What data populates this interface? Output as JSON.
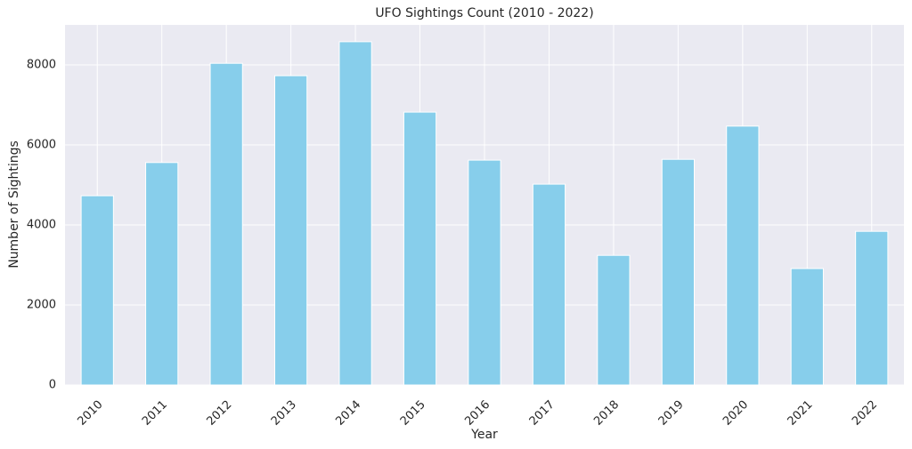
{
  "chart_data": {
    "type": "bar",
    "title": "UFO Sightings Count (2010 - 2022)",
    "x_label": "Year",
    "y_label": "Number of Sightings",
    "categories": [
      "2010",
      "2011",
      "2012",
      "2013",
      "2014",
      "2015",
      "2016",
      "2017",
      "2018",
      "2019",
      "2020",
      "2021",
      "2022"
    ],
    "values": [
      4730,
      5560,
      8040,
      7730,
      8580,
      6820,
      5620,
      5020,
      3240,
      5640,
      6470,
      2910,
      3840
    ],
    "color": "#87ceeb",
    "ylim": [
      0,
      9000
    ],
    "yticks": [
      0,
      2000,
      4000,
      6000,
      8000
    ],
    "grid": true
  }
}
